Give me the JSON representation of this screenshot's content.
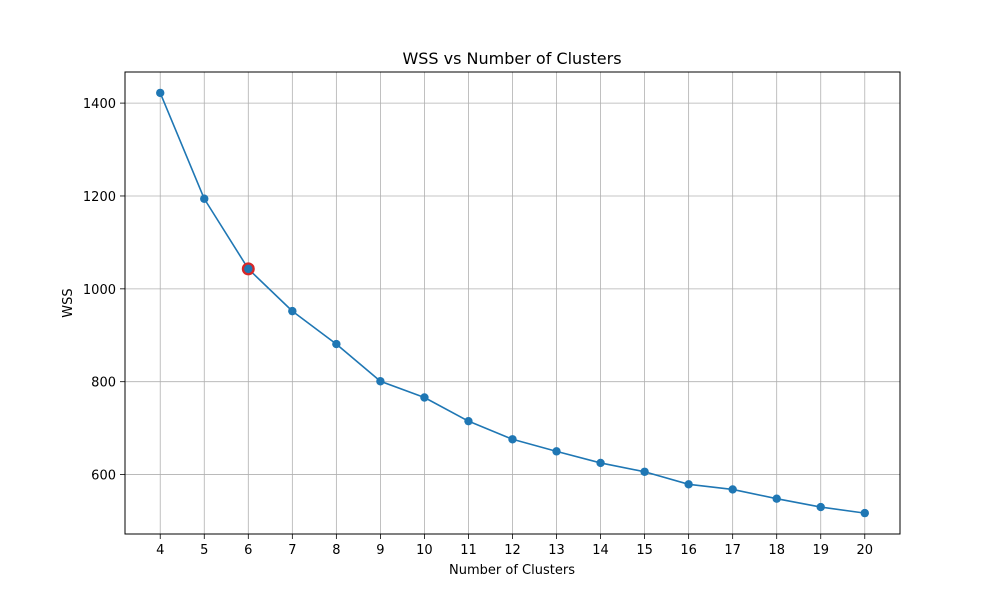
{
  "chart_data": {
    "type": "line",
    "title": "WSS vs Number of Clusters",
    "xlabel": "Number of Clusters",
    "ylabel": "WSS",
    "x": [
      4,
      5,
      6,
      7,
      8,
      9,
      10,
      11,
      12,
      13,
      14,
      15,
      16,
      17,
      18,
      19,
      20
    ],
    "series": [
      {
        "values": [
          1422,
          1194,
          1043,
          952,
          881,
          801,
          766,
          715,
          676,
          650,
          625,
          606,
          579,
          568,
          548,
          530,
          517
        ],
        "color": "#1f77b4",
        "marker": "circle"
      }
    ],
    "xticks": [
      4,
      5,
      6,
      7,
      8,
      9,
      10,
      11,
      12,
      13,
      14,
      15,
      16,
      17,
      18,
      19,
      20
    ],
    "yticks": [
      600,
      800,
      1000,
      1200,
      1400
    ],
    "xlim": [
      3.2,
      20.8
    ],
    "ylim": [
      472,
      1467
    ],
    "grid": true,
    "highlight": {
      "x": 6,
      "y": 1043,
      "color": "#d62728"
    }
  }
}
